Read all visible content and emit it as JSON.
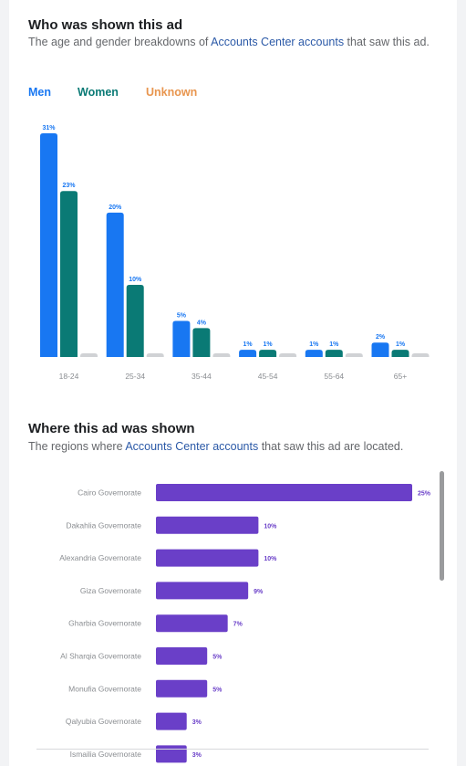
{
  "age_section": {
    "title": "Who was shown this ad",
    "subtitle_pre": "The age and gender breakdowns of ",
    "subtitle_link": "Accounts Center accounts",
    "subtitle_post": " that saw this ad.",
    "legend": [
      {
        "label": "Men",
        "color": "#1877f2"
      },
      {
        "label": "Women",
        "color": "#0a7a75"
      },
      {
        "label": "Unknown",
        "color": "#e8954e"
      }
    ]
  },
  "region_section": {
    "title": "Where this ad was shown",
    "subtitle_pre": "The regions where ",
    "subtitle_link": "Accounts Center accounts",
    "subtitle_post": " that saw this ad are located."
  },
  "colors": {
    "men": "#1877f2",
    "women": "#0a7a75",
    "unknown": "#d0d2d5",
    "region": "#6a3fc8"
  },
  "chart_data": [
    {
      "type": "bar",
      "categories": [
        "18-24",
        "25-34",
        "35-44",
        "45-54",
        "55-64",
        "65+"
      ],
      "series": [
        {
          "name": "Men",
          "values": [
            31,
            20,
            5,
            1,
            1,
            2
          ],
          "labels": [
            "31%",
            "20%",
            "5%",
            "1%",
            "1%",
            "2%"
          ]
        },
        {
          "name": "Women",
          "values": [
            23,
            10,
            4,
            1,
            1,
            1
          ],
          "labels": [
            "23%",
            "10%",
            "4%",
            "1%",
            "1%",
            "1%"
          ]
        },
        {
          "name": "Unknown",
          "values": [
            0.5,
            0.5,
            0.5,
            0.5,
            0.5,
            0.5
          ],
          "labels": [
            "",
            "",
            "",
            "",
            "",
            ""
          ]
        }
      ],
      "ylim": [
        0,
        31
      ]
    },
    {
      "type": "bar",
      "orientation": "horizontal",
      "categories": [
        "Cairo Governorate",
        "Dakahlia Governorate",
        "Alexandria Governorate",
        "Giza Governorate",
        "Gharbia Governorate",
        "Al Sharqia Governorate",
        "Monufia Governorate",
        "Qalyubia Governorate",
        "Ismailia Governorate"
      ],
      "values": [
        25,
        10,
        10,
        9,
        7,
        5,
        5,
        3,
        3
      ],
      "labels": [
        "25%",
        "10%",
        "10%",
        "9%",
        "7%",
        "5%",
        "5%",
        "3%",
        "3%"
      ],
      "xlim": [
        0,
        25
      ]
    }
  ]
}
